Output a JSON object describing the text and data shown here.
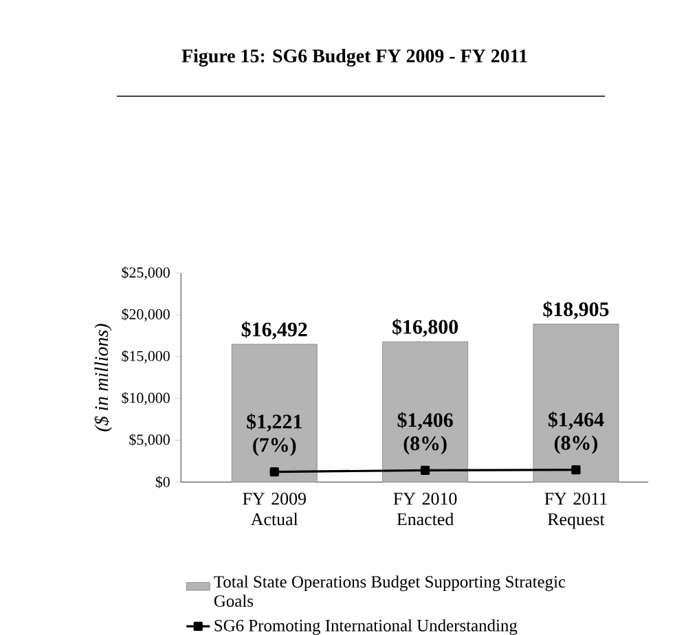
{
  "chart_data": {
    "type": "bar",
    "title": "Figure 15: SG6 Budget FY 2009 - FY 2011",
    "ylabel": "($ in millions)",
    "categories": [
      "FY 2009 Actual",
      "FY 2010 Enacted",
      "FY 2011 Request"
    ],
    "series": [
      {
        "name": "Total State Operations Budget Supporting Strategic Goals",
        "color": "#b4b4b4",
        "values": [
          16492,
          16800,
          18905
        ],
        "value_labels": [
          "$16,492",
          "$16,800",
          "$18,905"
        ]
      },
      {
        "name": "SG6 Promoting International Understanding",
        "type": "line",
        "color": "#000000",
        "marker": "square",
        "values": [
          1221,
          1406,
          1464
        ],
        "value_labels": [
          "$1,221 (7%)",
          "$1,406 (8%)",
          "$1,464 (8%)"
        ]
      }
    ],
    "ylim": [
      0,
      25000
    ],
    "yticks": [
      {
        "value": 0,
        "label": "$0"
      },
      {
        "value": 5000,
        "label": "$5,000"
      },
      {
        "value": 10000,
        "label": "$10,000"
      },
      {
        "value": 15000,
        "label": "$15,000"
      },
      {
        "value": 20000,
        "label": "$20,000"
      },
      {
        "value": 25000,
        "label": "$25,000"
      }
    ],
    "legend": "bottom"
  }
}
